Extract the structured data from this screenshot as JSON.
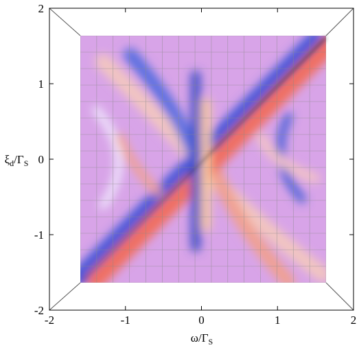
{
  "chart_data": {
    "type": "surface",
    "xlabel": [
      "ω/Γ",
      "S"
    ],
    "ylabel": [
      "ξ",
      "d",
      "/Γ",
      "S"
    ],
    "xlim": [
      -2,
      2
    ],
    "ylim": [
      -2,
      2
    ],
    "xticks": [
      -2,
      -1,
      0,
      1,
      2
    ],
    "yticks": [
      -2,
      -1,
      0,
      1,
      2
    ]
  }
}
